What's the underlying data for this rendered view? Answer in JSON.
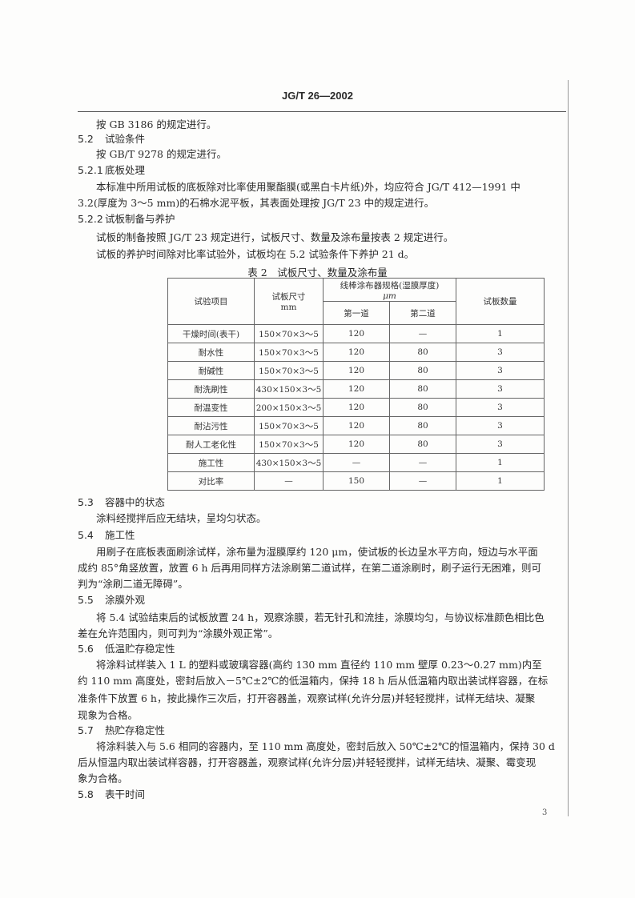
{
  "header": "JG/T 26—2002",
  "lines": [
    {
      "type": "p",
      "text": "按 GB 3186 的规定进行。"
    },
    {
      "type": "h",
      "num": "5.2",
      "text": "试验条件"
    },
    {
      "type": "p",
      "text": "按 GB/T 9278 的规定进行。"
    },
    {
      "type": "h",
      "num": "5.2.1",
      "text": "底板处理"
    },
    {
      "type": "p",
      "text": "本标准中所用试板的底板除对比率使用聚酯膜(或黑白卡片纸)外，均应符合 JG/T 412—1991 中"
    },
    {
      "type": "c",
      "text": "3.2(厚度为 3～5 mm)的石棉水泥平板，其表面处理按 JG/T 23 中的规定进行。"
    },
    {
      "type": "h",
      "num": "5.2.2",
      "text": "试板制备与养护"
    },
    {
      "type": "p",
      "text": "试板的制备按照 JG/T 23 规定进行，试板尺寸、数量及涂布量按表 2 规定进行。"
    },
    {
      "type": "p",
      "text": "试板的养护时间除对比率试验外，试板均在 5.2 试验条件下养护 21 d。"
    }
  ],
  "table": {
    "caption": "表 2　试板尺寸、数量及涂布量",
    "headers": {
      "item": "试验项目",
      "size": "试板尺寸",
      "size_unit": "mm",
      "coater": "线棒涂布器规格(湿膜厚度)",
      "coater_unit": "μm",
      "first": "第一道",
      "second": "第二道",
      "count": "试板数量"
    },
    "rows": [
      [
        "干燥时间(表干)",
        "150×70×3～5",
        "120",
        "—",
        "1"
      ],
      [
        "耐水性",
        "150×70×3～5",
        "120",
        "80",
        "3"
      ],
      [
        "耐碱性",
        "150×70×3～5",
        "120",
        "80",
        "3"
      ],
      [
        "耐洗刷性",
        "430×150×3～5",
        "120",
        "80",
        "3"
      ],
      [
        "耐温变性",
        "200×150×3～5",
        "120",
        "80",
        "3"
      ],
      [
        "耐沾污性",
        "150×70×3～5",
        "120",
        "80",
        "3"
      ],
      [
        "耐人工老化性",
        "150×70×3～5",
        "120",
        "80",
        "3"
      ],
      [
        "施工性",
        "430×150×3～5",
        "—",
        "—",
        "1"
      ],
      [
        "对比率",
        "—",
        "150",
        "—",
        "1"
      ]
    ]
  },
  "lines2": [
    {
      "type": "h",
      "num": "5.3",
      "text": "容器中的状态"
    },
    {
      "type": "p",
      "text": "涂料经搅拌后应无结块，呈均匀状态。"
    },
    {
      "type": "h",
      "num": "5.4",
      "text": "施工性"
    },
    {
      "type": "p",
      "text": "用刷子在底板表面刷涂试样，涂布量为湿膜厚约 120 μm，使试板的长边呈水平方向，短边与水平面"
    },
    {
      "type": "c",
      "text": "成约 85°角竖放置，放置 6 h 后再用同样方法涂刷第二道试样，在第二道涂刷时，刷子运行无困难，则可"
    },
    {
      "type": "c",
      "text": "判为“涂刷二道无障碍”。"
    },
    {
      "type": "h",
      "num": "5.5",
      "text": "涂膜外观"
    },
    {
      "type": "p",
      "text": "将 5.4 试验结束后的试板放置 24 h，观察涂膜，若无针孔和流挂，涂膜均匀，与协议标准颜色相比色"
    },
    {
      "type": "c",
      "text": "差在允许范围内，则可判为“涂膜外观正常”。"
    },
    {
      "type": "h",
      "num": "5.6",
      "text": "低温贮存稳定性"
    },
    {
      "type": "p",
      "text": "将涂料试样装入 1 L 的塑料或玻璃容器(高约 130 mm 直径约 110 mm 壁厚 0.23～0.27 mm)内至"
    },
    {
      "type": "c",
      "text": "约 110 mm 高度处，密封后放入－5℃±2℃的低温箱内，保持 18 h 后从低温箱内取出装试样容器，在标"
    },
    {
      "type": "c",
      "text": "准条件下放置 6 h，按此操作三次后，打开容器盖，观察试样(允许分层)并轻轻搅拌，试样无结块、凝聚"
    },
    {
      "type": "c",
      "text": "现象为合格。"
    },
    {
      "type": "h",
      "num": "5.7",
      "text": "热贮存稳定性"
    },
    {
      "type": "p",
      "text": "将涂料装入与 5.6 相同的容器内，至 110 mm 高度处，密封后放入 50℃±2℃的恒温箱内，保持 30 d"
    },
    {
      "type": "c",
      "text": "后从恒温内取出装试样容器，打开容器盖，观察试样(允许分层)并轻轻搅拌，试样无结块、凝聚、霉变现"
    },
    {
      "type": "c",
      "text": "象为合格。"
    },
    {
      "type": "h",
      "num": "5.8",
      "text": "表干时间"
    }
  ],
  "page_number": "3"
}
